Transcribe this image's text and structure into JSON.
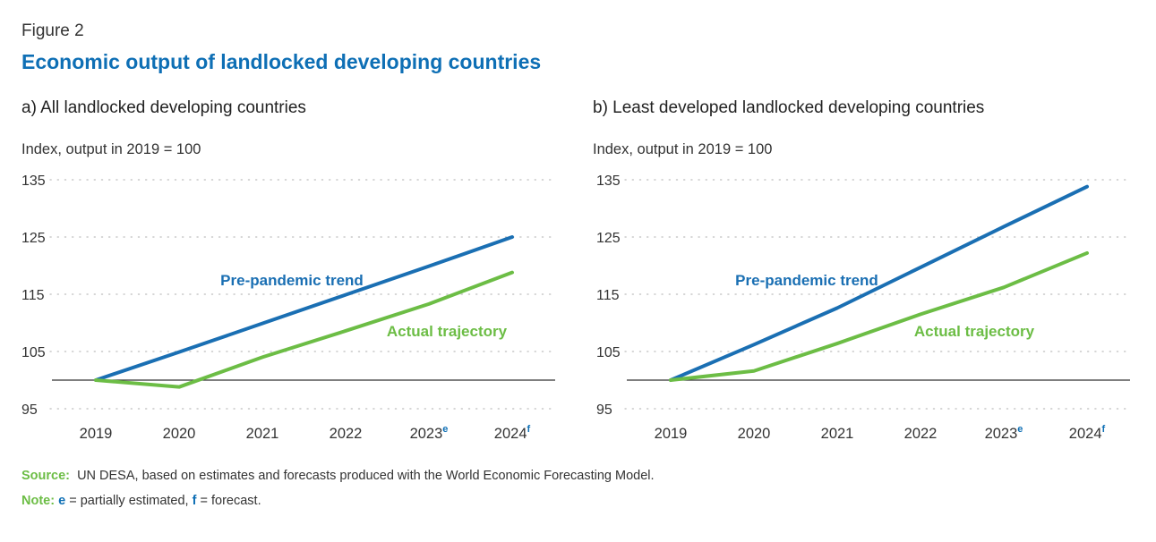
{
  "figure": {
    "label": "Figure 2",
    "title": "Economic output of landlocked developing countries"
  },
  "colors": {
    "trend": "#1a6fb3",
    "actual": "#6cbd45",
    "title": "#0e6fb5",
    "grid": "#bdbdbd",
    "baseline": "#333333"
  },
  "chart_data": [
    {
      "type": "line",
      "panel_title": "a)  All landlocked developing countries",
      "ylabel": "Index, output in 2019 = 100",
      "categories": [
        "2019",
        "2020",
        "2021",
        "2022",
        "2023",
        "2024"
      ],
      "category_superscripts": [
        "",
        "",
        "",
        "",
        "e",
        "f"
      ],
      "ylim": [
        95,
        135
      ],
      "yticks": [
        95,
        105,
        115,
        125,
        135
      ],
      "baseline": 100,
      "grid": "dotted horizontal",
      "series": [
        {
          "name": "Pre-pandemic trend",
          "color": "#1a6fb3",
          "values": [
            100,
            104.9,
            109.9,
            114.9,
            119.9,
            125.0
          ]
        },
        {
          "name": "Actual trajectory",
          "color": "#6cbd45",
          "values": [
            100,
            98.8,
            104.0,
            108.6,
            113.3,
            118.8
          ]
        }
      ]
    },
    {
      "type": "line",
      "panel_title": "b)  Least developed landlocked developing countries",
      "ylabel": "Index, output in 2019 = 100",
      "categories": [
        "2019",
        "2020",
        "2021",
        "2022",
        "2023",
        "2024"
      ],
      "category_superscripts": [
        "",
        "",
        "",
        "",
        "e",
        "f"
      ],
      "ylim": [
        95,
        135
      ],
      "yticks": [
        95,
        105,
        115,
        125,
        135
      ],
      "baseline": 100,
      "grid": "dotted horizontal",
      "series": [
        {
          "name": "Pre-pandemic trend",
          "color": "#1a6fb3",
          "values": [
            100,
            106.2,
            112.6,
            119.7,
            126.8,
            133.8
          ]
        },
        {
          "name": "Actual trajectory",
          "color": "#6cbd45",
          "values": [
            100,
            101.6,
            106.4,
            111.5,
            116.2,
            122.2
          ]
        }
      ]
    }
  ],
  "footer": {
    "source_label": "Source:",
    "source_text": "UN DESA, based on estimates and forecasts produced with the World Economic Forecasting Model.",
    "note_label": "Note:",
    "note_e": "e",
    "note_e_text": " = partially estimated, ",
    "note_f": "f",
    "note_f_text": " = forecast."
  }
}
